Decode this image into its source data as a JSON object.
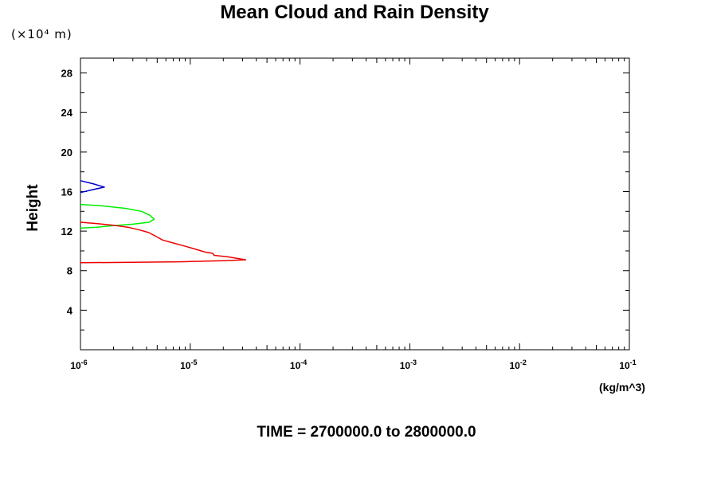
{
  "chart_data": {
    "type": "line",
    "title": "Mean Cloud and Rain Density",
    "ylabel": "Height",
    "yunit": "(×10⁴ m)",
    "xunit": "(kg/m^3)",
    "footer": "TIME = 2700000.0 to 2800000.0",
    "xscale": "log",
    "xlim": [
      1e-06,
      0.1
    ],
    "ylim": [
      0,
      29.5
    ],
    "xticks": [
      {
        "base": "10",
        "exp": "-6"
      },
      {
        "base": "10",
        "exp": "-5"
      },
      {
        "base": "10",
        "exp": "-4"
      },
      {
        "base": "10",
        "exp": "-3"
      },
      {
        "base": "10",
        "exp": "-2"
      },
      {
        "base": "10",
        "exp": "-1"
      }
    ],
    "yticks": [
      4,
      8,
      12,
      16,
      20,
      24,
      28
    ],
    "colors": {
      "blue": "#0000cc",
      "green": "#00ee00",
      "red": "#ee0000"
    },
    "series": [
      {
        "color": "#0000cc",
        "points": [
          [
            1e-06,
            17.1
          ],
          [
            1.3e-06,
            16.8
          ],
          [
            1.65e-06,
            16.45
          ],
          [
            1.3e-06,
            16.2
          ],
          [
            1e-06,
            15.9
          ]
        ]
      },
      {
        "color": "#00ee00",
        "points": [
          [
            1e-06,
            14.7
          ],
          [
            1.6e-06,
            14.55
          ],
          [
            2.6e-06,
            14.3
          ],
          [
            3.6e-06,
            14.0
          ],
          [
            4.3e-06,
            13.6
          ],
          [
            4.7e-06,
            13.2
          ],
          [
            4.2e-06,
            12.9
          ],
          [
            3e-06,
            12.7
          ],
          [
            2e-06,
            12.55
          ],
          [
            1.4e-06,
            12.4
          ],
          [
            1e-06,
            12.3
          ]
        ]
      },
      {
        "color": "#ee0000",
        "points": [
          [
            1e-06,
            12.9
          ],
          [
            1.3e-06,
            12.8
          ],
          [
            2e-06,
            12.6
          ],
          [
            2.7e-06,
            12.4
          ],
          [
            3.4e-06,
            12.15
          ],
          [
            4.2e-06,
            11.85
          ],
          [
            4.9e-06,
            11.45
          ],
          [
            5.6e-06,
            11.1
          ],
          [
            7e-06,
            10.8
          ],
          [
            8.8e-06,
            10.5
          ],
          [
            1.1e-05,
            10.2
          ],
          [
            1.35e-05,
            9.9
          ],
          [
            1.6e-05,
            9.75
          ],
          [
            1.65e-05,
            9.55
          ],
          [
            2.2e-05,
            9.4
          ],
          [
            3.2e-05,
            9.1
          ],
          [
            2e-05,
            9.0
          ],
          [
            8e-06,
            8.9
          ],
          [
            3e-06,
            8.85
          ],
          [
            1e-06,
            8.8
          ]
        ]
      }
    ]
  }
}
